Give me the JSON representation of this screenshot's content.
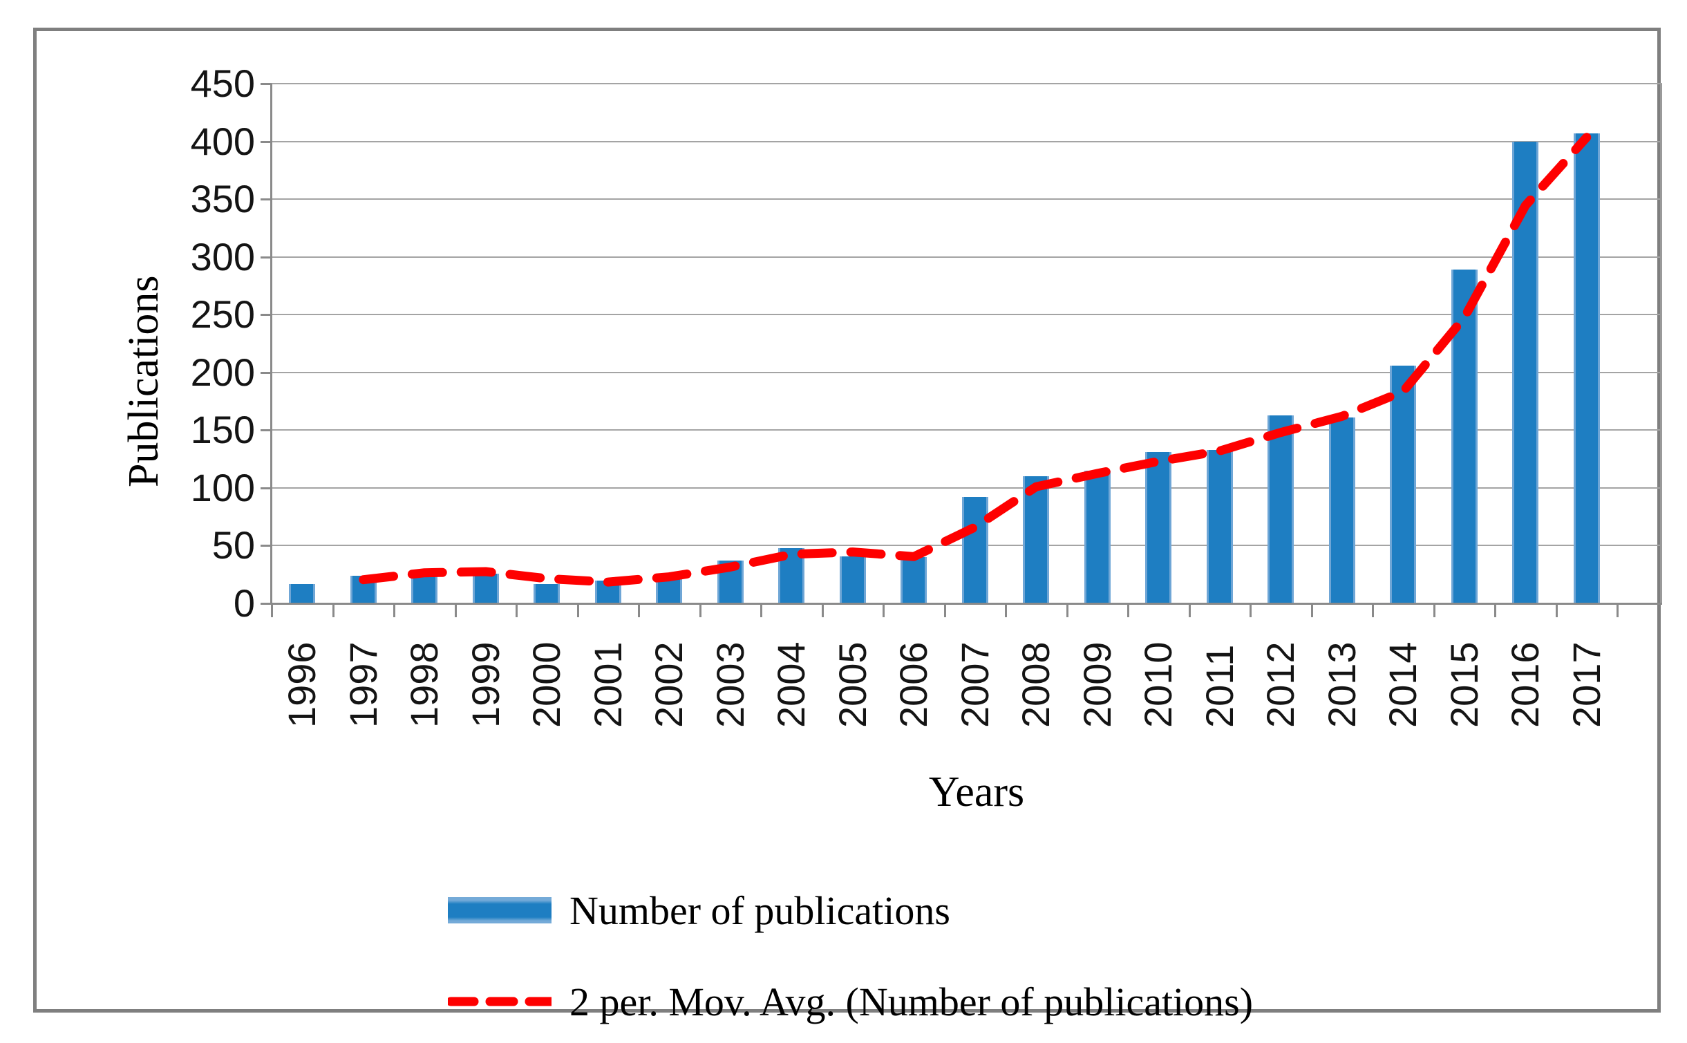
{
  "colors": {
    "bar_fill": "#1e7ec2",
    "bar_edge": "#6fa6d6",
    "line_red": "#fe0000",
    "gridline": "#a4a4a4",
    "axis": "#8a8a8a",
    "frame_border": "#7f7f7f",
    "background": "#ffffff"
  },
  "chart_data": {
    "type": "bar",
    "title": "",
    "xlabel": "Years",
    "ylabel": "Publications",
    "ylim": [
      0,
      450
    ],
    "ytick_step": 50,
    "grid": true,
    "legend_position": "bottom-left",
    "categories": [
      "1996",
      "1997",
      "1998",
      "1999",
      "2000",
      "2001",
      "2002",
      "2003",
      "2004",
      "2005",
      "2006",
      "2007",
      "2008",
      "2009",
      "2010",
      "2011",
      "2012",
      "2013",
      "2014",
      "2015",
      "2016",
      "2017"
    ],
    "series": [
      {
        "name": "Number of publications",
        "type": "bar",
        "color": "#1e7ec2",
        "values": [
          17,
          24,
          29,
          26,
          17,
          20,
          26,
          37,
          48,
          41,
          40,
          92,
          110,
          115,
          131,
          133,
          163,
          161,
          206,
          289,
          400,
          407
        ]
      },
      {
        "name": "2 per. Mov. Avg. (Number of publications)",
        "type": "line",
        "style": "dashed",
        "color": "#fe0000",
        "values": [
          null,
          20.5,
          26.5,
          27.5,
          21.5,
          18.5,
          23,
          31.5,
          42.5,
          44.5,
          40.5,
          66,
          101,
          112.5,
          123,
          132,
          148,
          162,
          183.5,
          247.5,
          344.5,
          403.5
        ]
      }
    ]
  },
  "legend": {
    "items": [
      {
        "label": "Number of publications",
        "swatch": "blue-bar-swatch"
      },
      {
        "label": "2 per. Mov. Avg. (Number of publications)",
        "swatch": "red-dashed-line-swatch"
      }
    ]
  }
}
